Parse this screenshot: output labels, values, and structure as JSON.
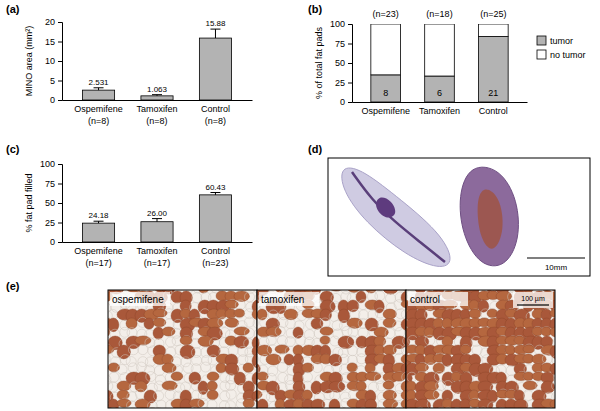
{
  "chart_data": [
    {
      "type": "bar",
      "title": "(a)",
      "y_label": "MINO area (mm²)",
      "categories": [
        "Ospemifene",
        "Tamoxifen",
        "Control"
      ],
      "annotations": [
        "(n=8)",
        "(n=8)",
        "(n=8)"
      ],
      "values": [
        2.531,
        1.063,
        15.88
      ],
      "errors": [
        0.6,
        0.3,
        2.3
      ],
      "color": "#b3b3b3",
      "ylim": [
        0,
        20
      ],
      "yticks": [
        0,
        5,
        10,
        15,
        20
      ],
      "data_labels": true
    },
    {
      "type": "bar",
      "title": "(b)",
      "y_label": "% of total fat pads",
      "categories": [
        "Ospemifene",
        "Tamoxifen",
        "Control"
      ],
      "annotations": [
        "(n=23)",
        "(n=18)",
        "(n=25)"
      ],
      "stacked": true,
      "legend": "right",
      "series": [
        {
          "name": "tumor",
          "color": "#b3b3b3",
          "values": [
            34.8,
            33.3,
            84.0
          ],
          "counts": [
            8,
            6,
            21
          ]
        },
        {
          "name": "no tumor",
          "color": "#ffffff",
          "values": [
            65.2,
            66.7,
            16.0
          ]
        }
      ],
      "ylim": [
        0,
        100
      ],
      "yticks": [
        0,
        25,
        50,
        75,
        100
      ]
    },
    {
      "type": "bar",
      "title": "(c)",
      "y_label": "% fat pad filled",
      "categories": [
        "Ospemifene",
        "Tamoxifen",
        "Control"
      ],
      "annotations": [
        "(n=17)",
        "(n=17)",
        "(n=23)"
      ],
      "values": [
        24.18,
        26.0,
        60.43
      ],
      "value_labels": [
        "24.18",
        "26.00",
        "60.43"
      ],
      "errors": [
        2.5,
        4.0,
        3.0
      ],
      "color": "#b3b3b3",
      "ylim": [
        0,
        100
      ],
      "yticks": [
        0,
        25,
        50,
        75,
        100
      ],
      "data_labels": true
    }
  ],
  "images": [
    {
      "title": "(d)",
      "scale_bar": "10mm"
    },
    {
      "title": "(e)",
      "labels": [
        "ospemifene",
        "tamoxifen",
        "control"
      ],
      "scale_bar": "100 µm"
    }
  ]
}
